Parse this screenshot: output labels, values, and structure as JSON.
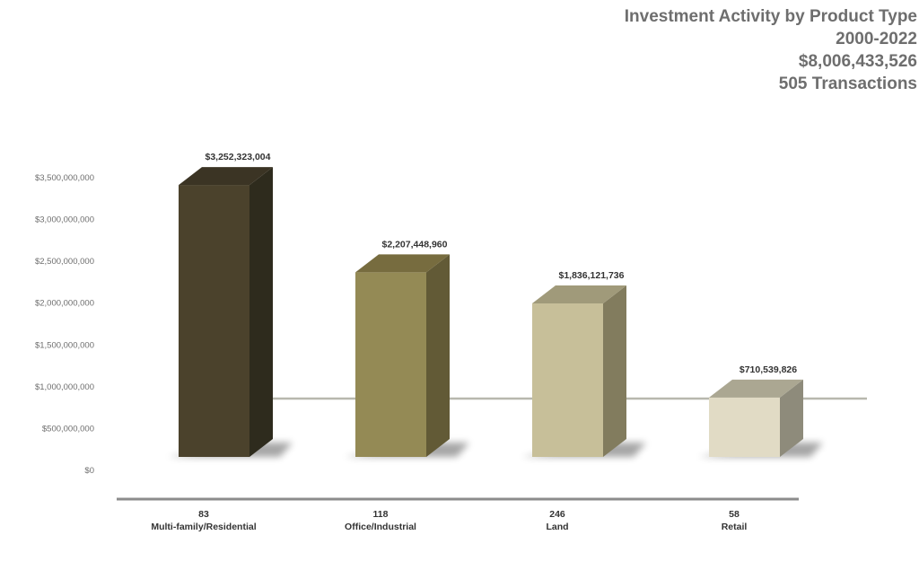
{
  "title": {
    "line1": "Investment Activity by Product Type",
    "line2": "2000-2022",
    "line3": "$8,006,433,526",
    "line4": "505 Transactions"
  },
  "chart_data": {
    "type": "bar",
    "categories": [
      "Multi-family/Residential",
      "Office/Industrial",
      "Land",
      "Retail"
    ],
    "transactions": [
      "83",
      "118",
      "246",
      "58"
    ],
    "values": [
      3252323004,
      2207448960,
      1836121736,
      710539826
    ],
    "value_labels": [
      "$3,252,323,004",
      "$2,207,448,960",
      "$1,836,121,736",
      "$710,539,826"
    ],
    "y_ticks": [
      0,
      500000000,
      1000000000,
      1500000000,
      2000000000,
      2500000000,
      3000000000,
      3500000000
    ],
    "y_tick_labels": [
      "$0",
      "$500,000,000",
      "$1,000,000,000",
      "$1,500,000,000",
      "$2,000,000,000",
      "$2,500,000,000",
      "$3,000,000,000",
      "$3,500,000,000"
    ],
    "ylim": [
      0,
      3500000000
    ],
    "grid": false,
    "style": "3d-column",
    "colors": [
      {
        "front": "#4b422c",
        "side": "#2e2b1d",
        "top": "#3b3424"
      },
      {
        "front": "#948a55",
        "side": "#625a36",
        "top": "#776c3f"
      },
      {
        "front": "#c7bf99",
        "side": "#827c5e",
        "top": "#a09a7a"
      },
      {
        "front": "#e1dbc5",
        "side": "#8e8b7b",
        "top": "#aba792"
      }
    ],
    "reference_line_color": "#b8b8ae",
    "axis_color": "#8c8c8c"
  }
}
